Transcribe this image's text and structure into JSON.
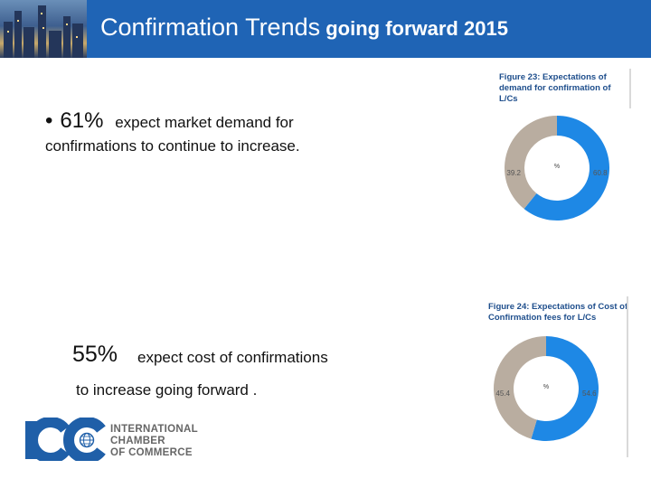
{
  "slide": {
    "title_part1": "Confirmation Trends",
    "title_part2": " going forward 2015",
    "bullet_symbol": "•",
    "stat1_percent": "61%",
    "stat1_text": "expect  market demand for",
    "stat1_line2": "confirmations to continue to increase.",
    "stat2_percent": "55%",
    "stat2_text": "expect cost of confirmations",
    "stat2_line2": "to increase going forward ."
  },
  "figures": {
    "fig23": {
      "title": "Figure 23: Expectations of demand for confirmation of L/Cs",
      "center_label": "%",
      "labels": [
        "60.8",
        "39.2"
      ]
    },
    "fig24": {
      "title": "Figure 24: Expectations of Cost of Confirmation fees for L/Cs",
      "center_label": "%",
      "labels": [
        "54.6",
        "45.4"
      ]
    }
  },
  "chart_data": [
    {
      "type": "pie",
      "title": "Figure 23: Expectations of demand for confirmation of L/Cs",
      "categories": [
        "60.8",
        "39.2"
      ],
      "values": [
        60.8,
        39.2
      ],
      "unit": "%"
    },
    {
      "type": "pie",
      "title": "Figure 24: Expectations of Cost of Confirmation fees for L/Cs",
      "categories": [
        "54.6",
        "45.4"
      ],
      "values": [
        54.6,
        45.4
      ],
      "unit": "%"
    }
  ],
  "colors": {
    "header_bg": "#1f64b5",
    "series_primary": "#1e88e5",
    "series_secondary": "#b9ada0",
    "logo_blue": "#1f5fa8"
  },
  "logo": {
    "mark": "ICC",
    "line1": "INTERNATIONAL",
    "line2": "CHAMBER",
    "line3": "OF COMMERCE"
  }
}
